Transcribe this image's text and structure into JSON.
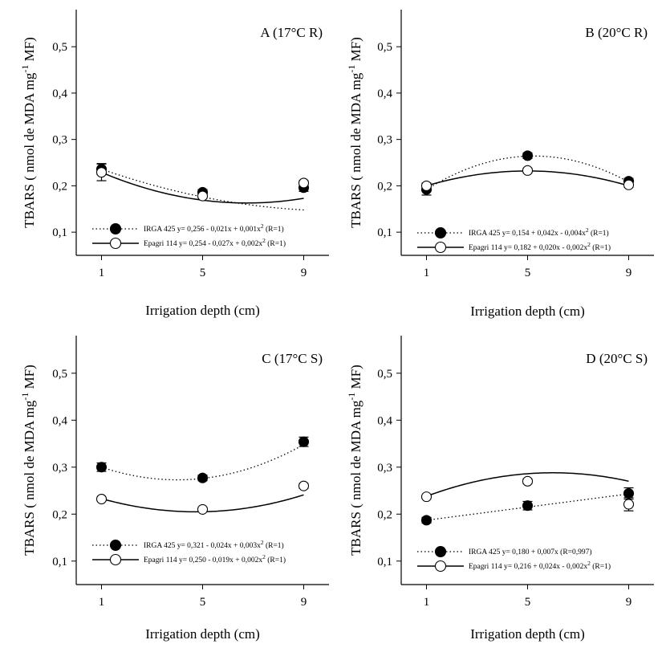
{
  "chart_data": [
    {
      "type": "scatter",
      "title": "A (17°C R)",
      "xlabel": "Irrigation depth (cm)",
      "ylabel": "TBARS ( nmol de MDA mg",
      "ylabel_sup": "-1",
      "ylabel_end": " MF)",
      "x_ticks": [
        1,
        5,
        9
      ],
      "y_ticks": [
        "0,1",
        "0,2",
        "0,3",
        "0,4",
        "0,5"
      ],
      "xlim": [
        0,
        10
      ],
      "ylim": [
        0.05,
        0.58
      ],
      "series": [
        {
          "marker": "filled",
          "line": "dotted",
          "x": [
            1,
            5,
            9
          ],
          "y": [
            0.236,
            0.186,
            0.196
          ],
          "err": [
            0.012,
            0.006,
            0.008
          ],
          "coef": [
            0.256,
            -0.021,
            0.001
          ],
          "legend_pre": "IRGA 425 y= 0,256 - 0,021x + 0,001x",
          "legend_sup": "2",
          "legend_post": " (R=1)"
        },
        {
          "marker": "open",
          "line": "solid",
          "x": [
            1,
            5,
            9
          ],
          "y": [
            0.229,
            0.178,
            0.206
          ],
          "err": [
            0.018,
            0.005,
            0.005
          ],
          "coef": [
            0.254,
            -0.027,
            0.002
          ],
          "legend_pre": "Epagri 114 y= 0,254 - 0,027x + 0,002x",
          "legend_sup": "2",
          "legend_post": " (R=1)"
        }
      ]
    },
    {
      "type": "scatter",
      "title": "B (20°C R)",
      "xlabel": "Irrigation depth (cm)",
      "ylabel": "TBARS ( nmol de MDA mg",
      "ylabel_sup": "-1",
      "ylabel_end": " MF)",
      "x_ticks": [
        1,
        5,
        9
      ],
      "y_ticks": [
        "0,1",
        "0,2",
        "0,3",
        "0,4",
        "0,5"
      ],
      "xlim": [
        0,
        10
      ],
      "ylim": [
        0.05,
        0.58
      ],
      "series": [
        {
          "marker": "filled",
          "line": "dotted",
          "x": [
            1,
            5,
            9
          ],
          "y": [
            0.192,
            0.265,
            0.21
          ],
          "err": [
            0.012,
            0.006,
            0.006
          ],
          "coef": [
            0.154,
            0.042,
            -0.004
          ],
          "legend_pre": "IRGA 425 y= 0,154 + 0,042x - 0,004x",
          "legend_sup": "2",
          "legend_post": " (R=1)"
        },
        {
          "marker": "open",
          "line": "solid",
          "x": [
            1,
            5,
            9
          ],
          "y": [
            0.2,
            0.233,
            0.202
          ],
          "err": [
            0.006,
            0.005,
            0.005
          ],
          "coef": [
            0.182,
            0.02,
            -0.002
          ],
          "legend_pre": "Epagri 114 y= 0,182 + 0,020x - 0,002x",
          "legend_sup": "2",
          "legend_post": " (R=1)"
        }
      ]
    },
    {
      "type": "scatter",
      "title": "C (17°C S)",
      "xlabel": "Irrigation depth (cm)",
      "ylabel": "TBARS ( nmol de MDA mg",
      "ylabel_sup": "-1",
      "ylabel_end": " MF)",
      "x_ticks": [
        1,
        5,
        9
      ],
      "y_ticks": [
        "0,1",
        "0,2",
        "0,3",
        "0,4",
        "0,5"
      ],
      "xlim": [
        0,
        10
      ],
      "ylim": [
        0.05,
        0.58
      ],
      "series": [
        {
          "marker": "filled",
          "line": "dotted",
          "x": [
            1,
            5,
            9
          ],
          "y": [
            0.3,
            0.277,
            0.354
          ],
          "err": [
            0.009,
            0.006,
            0.01
          ],
          "coef": [
            0.321,
            -0.024,
            0.003
          ],
          "legend_pre": "IRGA 425 y= 0,321 - 0,024x + 0,003x",
          "legend_sup": "2",
          "legend_post": " (R=1)"
        },
        {
          "marker": "open",
          "line": "solid",
          "x": [
            1,
            5,
            9
          ],
          "y": [
            0.232,
            0.21,
            0.26
          ],
          "err": [
            0.004,
            0.004,
            0.005
          ],
          "coef": [
            0.25,
            -0.019,
            0.002
          ],
          "legend_pre": "Epagri 114 y= 0,250 - 0,019x + 0,002x",
          "legend_sup": "2",
          "legend_post": " (R=1)"
        }
      ]
    },
    {
      "type": "scatter",
      "title": "D (20°C S)",
      "xlabel": "Irrigation depth (cm)",
      "ylabel": "TBARS ( nmol de MDA mg",
      "ylabel_sup": "-1",
      "ylabel_end": " MF)",
      "x_ticks": [
        1,
        5,
        9
      ],
      "y_ticks": [
        "0,1",
        "0,2",
        "0,3",
        "0,4",
        "0,5"
      ],
      "xlim": [
        0,
        10
      ],
      "ylim": [
        0.05,
        0.58
      ],
      "series": [
        {
          "marker": "filled",
          "line": "dotted",
          "x": [
            1,
            5,
            9
          ],
          "y": [
            0.187,
            0.218,
            0.244
          ],
          "err": [
            0.006,
            0.009,
            0.012
          ],
          "coef": [
            0.18,
            0.007,
            0
          ],
          "legend_pre": "IRGA 425 y= 0,180 + 0,007x (R=0,997)",
          "legend_sup": "",
          "legend_post": ""
        },
        {
          "marker": "open",
          "line": "solid",
          "x": [
            1,
            5,
            9
          ],
          "y": [
            0.237,
            0.27,
            0.221
          ],
          "err": [
            0.004,
            0.005,
            0.014
          ],
          "coef": [
            0.216,
            0.024,
            -0.002
          ],
          "legend_pre": "Epagri 114 y= 0,216 + 0,024x - 0,002x",
          "legend_sup": "2",
          "legend_post": " (R=1)"
        }
      ]
    }
  ]
}
